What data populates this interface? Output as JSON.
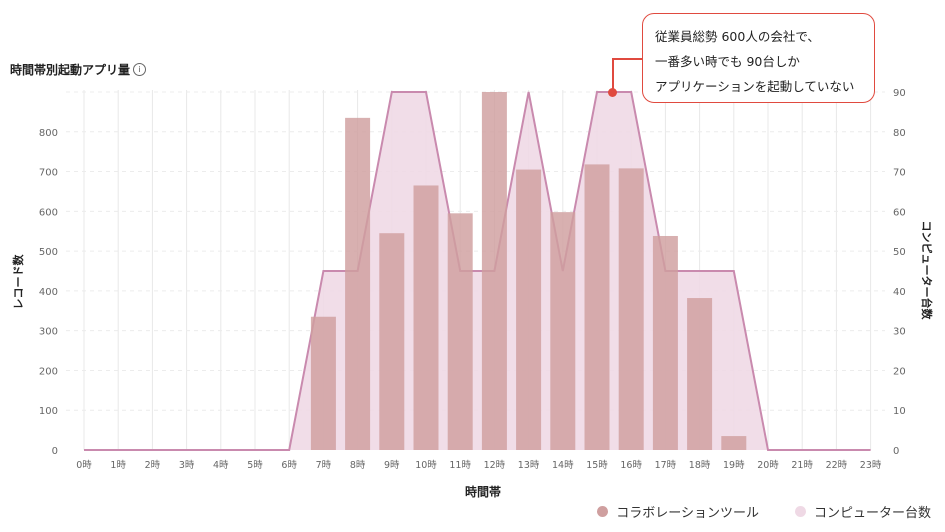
{
  "title": "時間帯別起動アプリ量",
  "info_icon": "info-icon",
  "callout": {
    "lines": [
      "従業員総勢 600人の会社で、",
      "一番多い時でも 90台しか",
      "アプリケーションを起動していない"
    ]
  },
  "colors": {
    "bars": "#cf9f9f",
    "bars_overlap": "#d2a6ac",
    "area_fill": "#efd9e5",
    "area_line": "#c98aae",
    "callout_border": "#e04a3f",
    "grid": "#e8e8e8"
  },
  "chart_data": {
    "type": "bar",
    "title": "時間帯別起動アプリ量",
    "xlabel": "時間帯",
    "ylabel_left": "レコード数",
    "ylabel_right": "コンピューター台数",
    "categories": [
      "0時",
      "1時",
      "2時",
      "3時",
      "4時",
      "5時",
      "6時",
      "7時",
      "8時",
      "9時",
      "10時",
      "11時",
      "12時",
      "13時",
      "14時",
      "15時",
      "16時",
      "17時",
      "18時",
      "19時",
      "20時",
      "21時",
      "22時",
      "23時"
    ],
    "ylim_left": [
      0,
      900
    ],
    "yticks_left": [
      0,
      100,
      200,
      300,
      400,
      500,
      600,
      700,
      800
    ],
    "ylim_right": [
      0,
      90
    ],
    "yticks_right": [
      0,
      10,
      20,
      30,
      40,
      50,
      60,
      70,
      80,
      90
    ],
    "grid": true,
    "legend_position": "bottom-right",
    "series": [
      {
        "name": "コラボレーションツール",
        "type": "bar",
        "axis": "left",
        "values": [
          0,
          0,
          0,
          0,
          0,
          0,
          0,
          335,
          835,
          545,
          665,
          595,
          900,
          705,
          598,
          718,
          708,
          538,
          382,
          35,
          0,
          0,
          0,
          0
        ]
      },
      {
        "name": "コンピューター台数",
        "type": "area",
        "axis": "right",
        "values": [
          0,
          0,
          0,
          0,
          0,
          0,
          0,
          45,
          45,
          90,
          90,
          45,
          45,
          90,
          45,
          90,
          90,
          45,
          45,
          45,
          0,
          0,
          0,
          0
        ]
      }
    ]
  }
}
